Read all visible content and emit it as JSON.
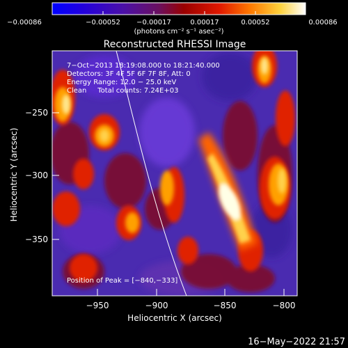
{
  "colorbar": {
    "tick_labels": [
      "−0.00086",
      "−0.00052",
      "−0.00017",
      "0.00017",
      "0.00052",
      "0.00086"
    ],
    "unit_label": "(photons cm⁻² s⁻¹ asec⁻²)"
  },
  "title": "Reconstructed RHESSI Image",
  "annotations": [
    "7−Oct−2013 18:19:08.000 to 18:21:40.000",
    "Detectors: 3F 4F 5F 6F 7F 8F, Att: 0",
    "Energy Range: 12.0 − 25.0 keV",
    "Clean     Total counts: 7.24E+03"
  ],
  "peak_label": "Position of Peak = [−840,−333]",
  "axes": {
    "xlabel": "Heliocentric X (arcsec)",
    "ylabel": "Heliocentric Y (arcsec)",
    "x_ticks": [
      "−950",
      "−900",
      "−850",
      "−800"
    ],
    "y_ticks": [
      "−250",
      "−300",
      "−350"
    ]
  },
  "footer_timestamp": "16−May−2022 21:57",
  "colors": {
    "background": "#000000",
    "colormap": [
      "#0000ff",
      "#3b00c8",
      "#5a109a",
      "#8a1414",
      "#d20000",
      "#ff5a00",
      "#ffa500",
      "#ffe14b",
      "#ffffff"
    ]
  }
}
